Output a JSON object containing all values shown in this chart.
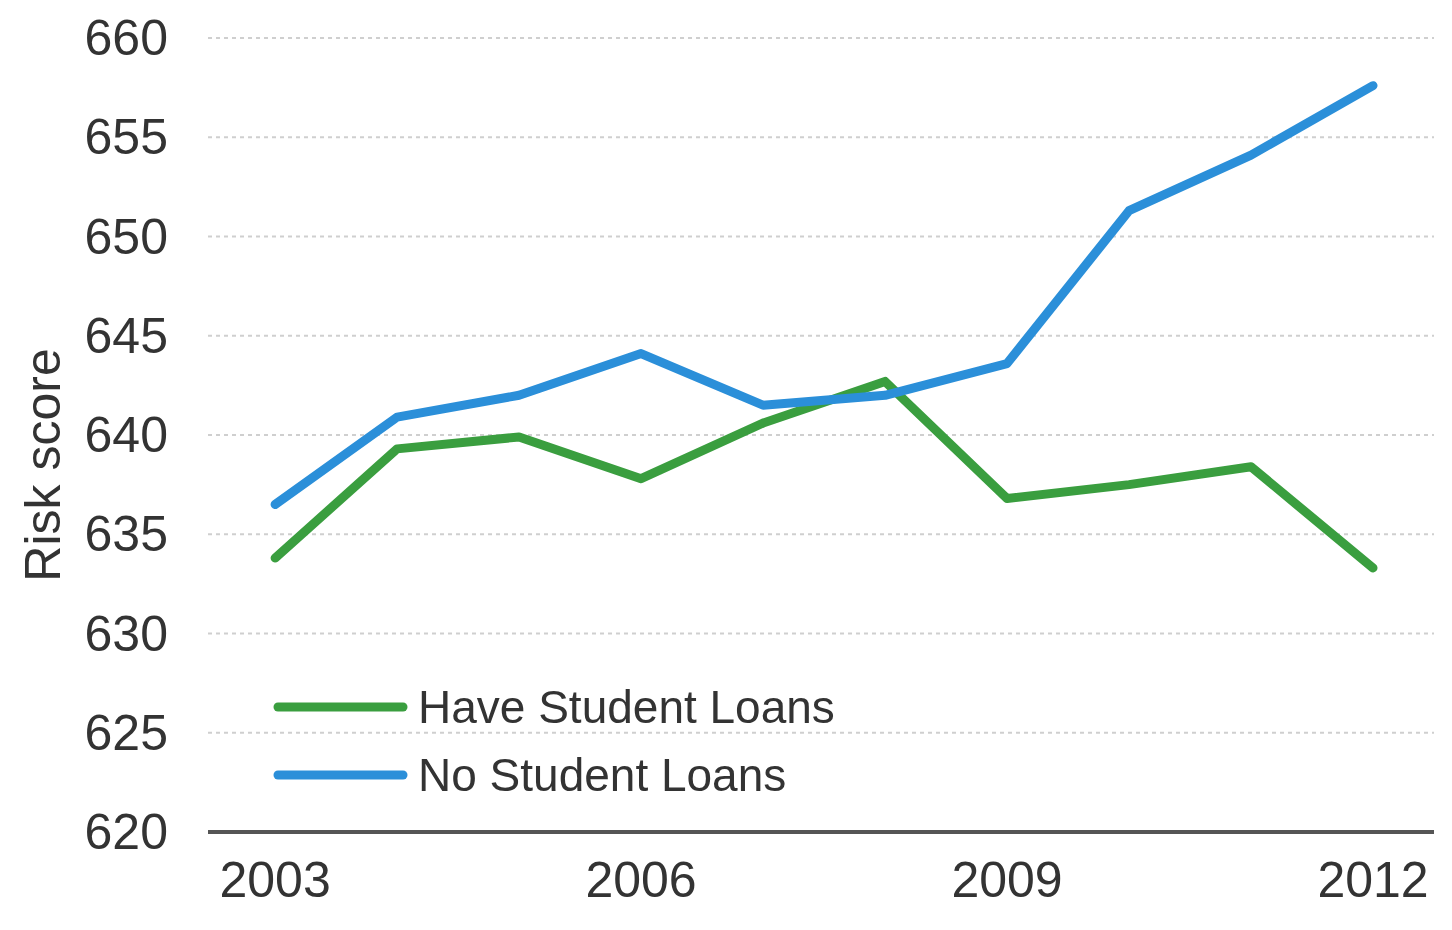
{
  "chart_data": {
    "type": "line",
    "ylabel": "Risk score",
    "x": [
      2003,
      2004,
      2005,
      2006,
      2007,
      2008,
      2009,
      2010,
      2011,
      2012
    ],
    "series": [
      {
        "name": "Have Student Loans",
        "color": "#3a9e3f",
        "values": [
          633.8,
          639.3,
          639.9,
          637.8,
          640.6,
          642.7,
          636.8,
          637.5,
          638.4,
          633.3
        ]
      },
      {
        "name": "No Student Loans",
        "color": "#2b8fd9",
        "values": [
          636.5,
          640.9,
          642.0,
          644.1,
          641.5,
          642.0,
          643.6,
          651.3,
          654.1,
          657.6
        ]
      }
    ],
    "xlim": [
      2002.45,
      2012.5
    ],
    "xticks": [
      2003,
      2006,
      2009,
      2012
    ],
    "ylim": [
      620,
      660
    ],
    "yticks": [
      620,
      625,
      630,
      635,
      640,
      645,
      650,
      655,
      660
    ],
    "grid": "y",
    "legend": "bottom left",
    "marker": "none",
    "line_style": "solid"
  }
}
